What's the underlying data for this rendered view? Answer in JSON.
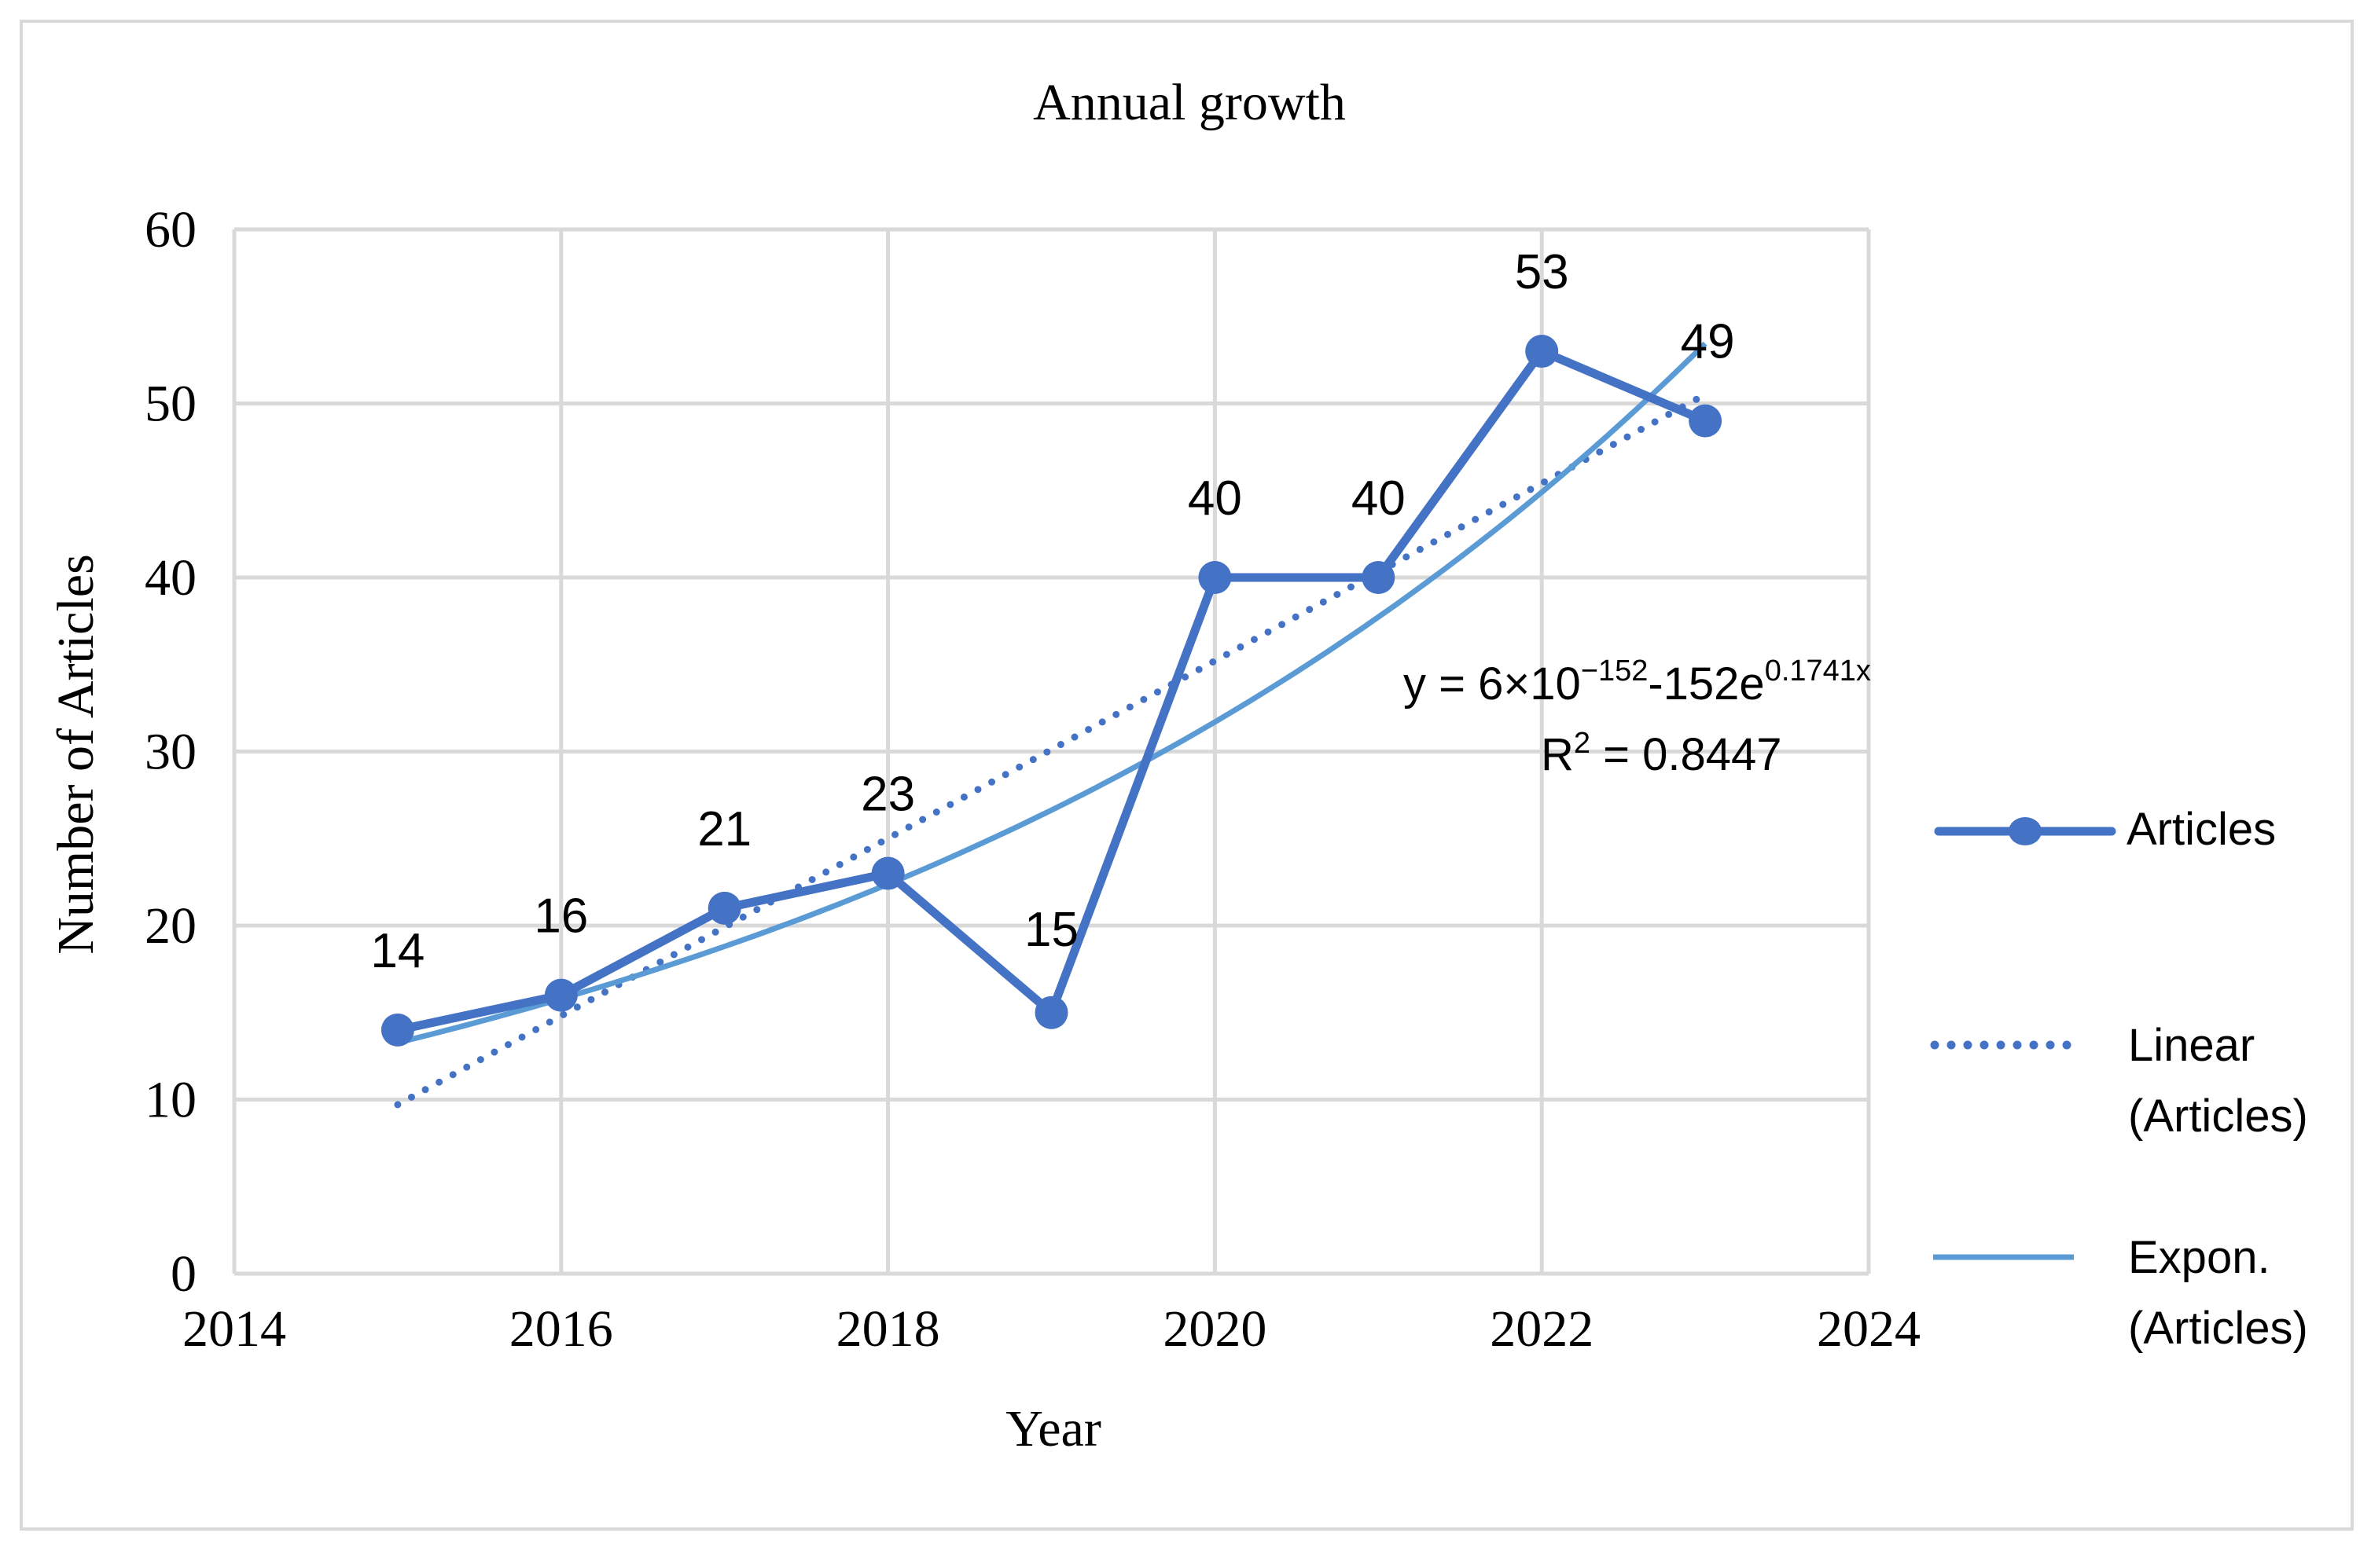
{
  "chart_data": {
    "type": "line",
    "title": "Annual growth",
    "xlabel": "Year",
    "ylabel": "Number of Articles",
    "xlim": [
      2014,
      2024
    ],
    "ylim": [
      0,
      60
    ],
    "x_ticks": [
      "2014",
      "2016",
      "2018",
      "2020",
      "2022",
      "2024"
    ],
    "y_ticks": [
      "0",
      "10",
      "20",
      "30",
      "40",
      "50",
      "60"
    ],
    "grid": true,
    "legend_position": "right",
    "x": [
      2015,
      2016,
      2017,
      2018,
      2019,
      2020,
      2021,
      2022,
      2023
    ],
    "series": [
      {
        "name": "Articles",
        "values": [
          14,
          16,
          21,
          23,
          15,
          40,
          40,
          53,
          49
        ],
        "color": "#4472C4",
        "style": "line-markers",
        "data_labels": [
          "14",
          "16",
          "21",
          "23",
          "15",
          "40",
          "40",
          "53",
          "49"
        ]
      }
    ],
    "trendlines": [
      {
        "name": "Linear (Articles)",
        "kind": "linear",
        "color": "#4472C4",
        "style": "dotted"
      },
      {
        "name": "Expon. (Articles)",
        "kind": "exponential",
        "color": "#5B9BD5",
        "style": "solid",
        "rate": 0.1741
      }
    ],
    "annotation": {
      "equation_prefix": "y = 6×10",
      "equation_exp1": "−152",
      "equation_mid": "-152e",
      "equation_exp2": "0.1741x",
      "r2_prefix": "R",
      "r2_sup": "2",
      "r2_value": " = 0.8447"
    },
    "colors": {
      "grid": "#D9D9D9",
      "border": "#D9D9D9"
    }
  }
}
